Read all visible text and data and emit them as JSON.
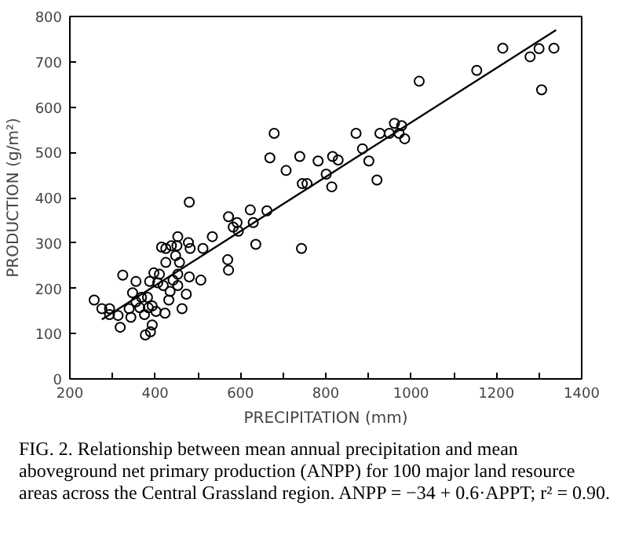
{
  "chart_data": {
    "type": "scatter",
    "xlabel": "PRECIPITATION (mm)",
    "ylabel": "PRODUCTION (g/m²)",
    "annotations": [
      "FIG. 2. Relationship between mean annual precipitation and mean aboveground net primary production (ANPP) for 100 major land resource areas across the Central Grassland region. ANPP = −34 + 0.6·APPT; r² = 0.90."
    ],
    "xlim": [
      200,
      1400
    ],
    "ylim": [
      0,
      800
    ],
    "xticks": [
      200,
      {
        "value": 300,
        "label": null
      },
      400,
      {
        "value": 500,
        "label": null
      },
      600,
      {
        "value": 700,
        "label": null
      },
      800,
      {
        "value": 900,
        "label": null
      },
      1000,
      {
        "value": 1100,
        "label": null
      },
      1200,
      {
        "value": 1300,
        "label": null
      },
      1400
    ],
    "yticks": [
      0,
      100,
      200,
      300,
      400,
      500,
      600,
      700,
      800
    ],
    "grid": false,
    "series": [
      {
        "marker": "circle",
        "color": "#000000",
        "x": [
          257,
          275,
          293,
          293,
          313,
          318,
          324,
          339,
          343,
          347,
          355,
          355,
          364,
          368,
          375,
          377,
          384,
          382,
          387,
          389,
          393,
          393,
          397,
          402,
          406,
          410,
          419,
          415,
          425,
          423,
          425,
          432,
          435,
          438,
          442,
          448,
          451,
          453,
          453,
          457,
          453,
          463,
          473,
          478,
          480,
          482,
          480,
          507,
          512,
          534,
          570,
          572,
          572,
          583,
          592,
          595,
          623,
          630,
          636,
          662,
          669,
          679,
          707,
          739,
          743,
          745,
          756,
          782,
          801,
          814,
          816,
          829,
          871,
          886,
          901,
          920,
          927,
          949,
          961,
          972,
          978,
          985,
          1019,
          1154,
          1215,
          1279,
          1300,
          1306,
          1335
        ],
        "values": [
          174,
          155,
          155,
          142,
          140,
          114,
          229,
          155,
          136,
          190,
          170,
          215,
          157,
          180,
          142,
          97,
          157,
          180,
          215,
          104,
          119,
          161,
          234,
          149,
          212,
          231,
          206,
          291,
          288,
          145,
          257,
          174,
          193,
          294,
          218,
          272,
          294,
          231,
          206,
          257,
          314,
          155,
          187,
          301,
          225,
          288,
          390,
          218,
          288,
          314,
          263,
          240,
          358,
          335,
          345,
          326,
          373,
          345,
          297,
          371,
          488,
          542,
          460,
          491,
          288,
          431,
          431,
          481,
          452,
          424,
          491,
          483,
          542,
          508,
          481,
          439,
          542,
          542,
          564,
          542,
          559,
          530,
          657,
          681,
          730,
          711,
          729,
          638,
          730
        ]
      },
      {
        "type": "line",
        "marker": "none",
        "color": "#000000",
        "line_style": "solid",
        "x": [
          275,
          1340
        ],
        "values": [
          131,
          770
        ]
      }
    ]
  }
}
